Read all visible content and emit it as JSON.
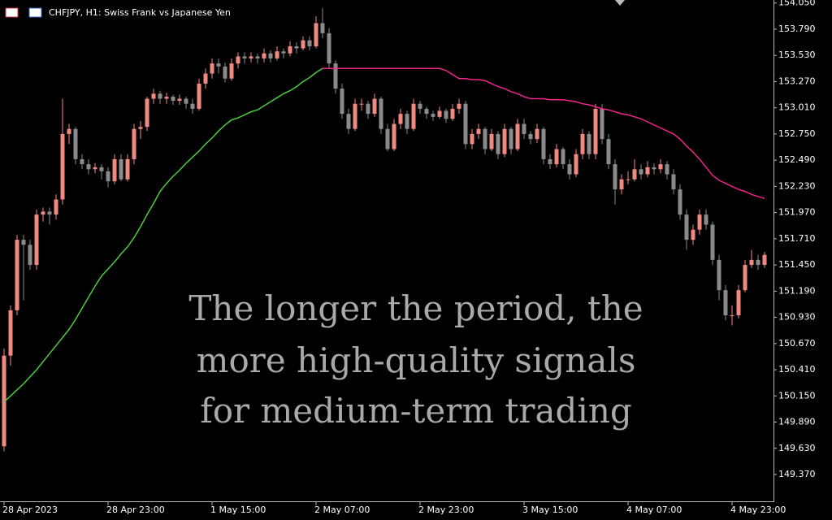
{
  "chart_data": {
    "type": "candlestick",
    "title": "CHFJPY, H1:  Swiss Frank vs Japanese Yen",
    "annotation": [
      "The longer the period, the",
      "more high-quality signals",
      "for medium-term trading"
    ],
    "up_color": "#f08a80",
    "down_color": "#8a8a8a",
    "ylim": [
      149.12,
      154.08
    ],
    "yticks": [
      {
        "value": 154.05,
        "label": "154.050"
      },
      {
        "value": 153.79,
        "label": "153.790"
      },
      {
        "value": 153.53,
        "label": "153.530"
      },
      {
        "value": 153.27,
        "label": "153.270"
      },
      {
        "value": 153.01,
        "label": "153.010"
      },
      {
        "value": 152.75,
        "label": "152.750"
      },
      {
        "value": 152.49,
        "label": "152.490"
      },
      {
        "value": 152.23,
        "label": "152.230"
      },
      {
        "value": 151.97,
        "label": "151.970"
      },
      {
        "value": 151.71,
        "label": "151.710"
      },
      {
        "value": 151.45,
        "label": "151.450"
      },
      {
        "value": 151.19,
        "label": "151.190"
      },
      {
        "value": 150.93,
        "label": "150.930"
      },
      {
        "value": 150.67,
        "label": "150.670"
      },
      {
        "value": 150.41,
        "label": "150.410"
      },
      {
        "value": 150.15,
        "label": "150.150"
      },
      {
        "value": 149.89,
        "label": "149.890"
      },
      {
        "value": 149.63,
        "label": "149.630"
      },
      {
        "value": 149.37,
        "label": "149.370"
      }
    ],
    "xlim": [
      -0.625,
      118.375
    ],
    "xticks": [
      {
        "value": 0,
        "label": "28 Apr 2023"
      },
      {
        "value": 16,
        "label": "28 Apr 23:00"
      },
      {
        "value": 32,
        "label": "1 May 15:00"
      },
      {
        "value": 48,
        "label": "2 May 07:00"
      },
      {
        "value": 64,
        "label": "2 May 23:00"
      },
      {
        "value": 80,
        "label": "3 May 15:00"
      },
      {
        "value": 96,
        "label": "4 May 07:00"
      },
      {
        "value": 112,
        "label": "4 May 23:00"
      }
    ],
    "candles": [
      [
        149.65,
        150.62,
        149.6,
        150.55
      ],
      [
        150.55,
        151.05,
        150.45,
        151.0
      ],
      [
        151.0,
        151.75,
        150.95,
        151.7
      ],
      [
        151.7,
        151.75,
        151.1,
        151.65
      ],
      [
        151.65,
        151.7,
        151.4,
        151.45
      ],
      [
        151.45,
        152.0,
        151.4,
        151.95
      ],
      [
        151.95,
        152.02,
        151.88,
        151.98
      ],
      [
        151.98,
        152.02,
        151.85,
        151.95
      ],
      [
        151.95,
        152.15,
        151.9,
        152.1
      ],
      [
        152.1,
        153.1,
        152.05,
        152.75
      ],
      [
        152.75,
        152.85,
        152.65,
        152.8
      ],
      [
        152.8,
        152.82,
        152.45,
        152.5
      ],
      [
        152.5,
        152.55,
        152.4,
        152.45
      ],
      [
        152.45,
        152.5,
        152.35,
        152.4
      ],
      [
        152.4,
        152.46,
        152.36,
        152.42
      ],
      [
        152.42,
        152.45,
        152.3,
        152.38
      ],
      [
        152.38,
        152.42,
        152.22,
        152.28
      ],
      [
        152.28,
        152.55,
        152.25,
        152.5
      ],
      [
        152.5,
        152.55,
        152.28,
        152.3
      ],
      [
        152.3,
        152.55,
        152.28,
        152.5
      ],
      [
        152.5,
        152.85,
        152.45,
        152.8
      ],
      [
        152.8,
        152.88,
        152.7,
        152.82
      ],
      [
        152.82,
        153.12,
        152.78,
        153.1
      ],
      [
        153.1,
        153.2,
        153.05,
        153.15
      ],
      [
        153.15,
        153.18,
        153.05,
        153.1
      ],
      [
        153.1,
        153.16,
        153.05,
        153.12
      ],
      [
        153.12,
        153.14,
        153.04,
        153.08
      ],
      [
        153.08,
        153.14,
        153.04,
        153.1
      ],
      [
        153.1,
        153.12,
        153.0,
        153.05
      ],
      [
        153.05,
        153.1,
        152.95,
        153.0
      ],
      [
        153.0,
        153.3,
        152.98,
        153.25
      ],
      [
        153.25,
        153.4,
        153.2,
        153.35
      ],
      [
        153.35,
        153.5,
        153.3,
        153.45
      ],
      [
        153.45,
        153.5,
        153.35,
        153.42
      ],
      [
        153.42,
        153.46,
        153.26,
        153.3
      ],
      [
        153.3,
        153.5,
        153.28,
        153.45
      ],
      [
        153.45,
        153.56,
        153.4,
        153.52
      ],
      [
        153.52,
        153.56,
        153.45,
        153.5
      ],
      [
        153.5,
        153.56,
        153.46,
        153.52
      ],
      [
        153.52,
        153.55,
        153.45,
        153.5
      ],
      [
        153.5,
        153.6,
        153.46,
        153.55
      ],
      [
        153.55,
        153.58,
        153.46,
        153.5
      ],
      [
        153.5,
        153.62,
        153.48,
        153.57
      ],
      [
        153.57,
        153.6,
        153.5,
        153.55
      ],
      [
        153.55,
        153.67,
        153.52,
        153.62
      ],
      [
        153.62,
        153.66,
        153.55,
        153.6
      ],
      [
        153.6,
        153.72,
        153.58,
        153.68
      ],
      [
        153.68,
        153.72,
        153.58,
        153.62
      ],
      [
        153.62,
        153.92,
        153.6,
        153.85
      ],
      [
        153.85,
        154.0,
        153.7,
        153.75
      ],
      [
        153.75,
        153.8,
        153.4,
        153.45
      ],
      [
        153.45,
        153.48,
        153.15,
        153.2
      ],
      [
        153.2,
        153.25,
        152.9,
        152.95
      ],
      [
        152.95,
        153.0,
        152.75,
        152.8
      ],
      [
        152.8,
        153.1,
        152.78,
        153.05
      ],
      [
        153.05,
        153.1,
        152.98,
        153.05
      ],
      [
        153.05,
        153.08,
        152.9,
        152.95
      ],
      [
        152.95,
        153.15,
        152.92,
        153.1
      ],
      [
        153.1,
        153.12,
        152.75,
        152.8
      ],
      [
        152.8,
        152.85,
        152.58,
        152.6
      ],
      [
        152.6,
        152.9,
        152.58,
        152.85
      ],
      [
        152.85,
        153.0,
        152.8,
        152.95
      ],
      [
        152.95,
        152.98,
        152.75,
        152.8
      ],
      [
        152.8,
        153.1,
        152.78,
        153.05
      ],
      [
        153.05,
        153.08,
        152.95,
        153.0
      ],
      [
        153.0,
        153.02,
        152.9,
        152.95
      ],
      [
        152.95,
        152.98,
        152.88,
        152.92
      ],
      [
        152.92,
        153.02,
        152.9,
        152.98
      ],
      [
        152.98,
        153.0,
        152.86,
        152.9
      ],
      [
        152.9,
        153.05,
        152.88,
        153.0
      ],
      [
        153.0,
        153.1,
        152.95,
        153.05
      ],
      [
        153.05,
        153.08,
        152.6,
        152.65
      ],
      [
        152.65,
        152.8,
        152.6,
        152.75
      ],
      [
        152.75,
        152.85,
        152.7,
        152.8
      ],
      [
        152.8,
        152.82,
        152.55,
        152.6
      ],
      [
        152.6,
        152.8,
        152.58,
        152.75
      ],
      [
        152.75,
        152.78,
        152.5,
        152.55
      ],
      [
        152.55,
        152.85,
        152.52,
        152.8
      ],
      [
        152.8,
        152.82,
        152.55,
        152.6
      ],
      [
        152.6,
        152.9,
        152.58,
        152.85
      ],
      [
        152.85,
        152.9,
        152.7,
        152.75
      ],
      [
        152.75,
        152.78,
        152.65,
        152.7
      ],
      [
        152.7,
        152.85,
        152.66,
        152.8
      ],
      [
        152.8,
        152.82,
        152.45,
        152.5
      ],
      [
        152.5,
        152.55,
        152.4,
        152.45
      ],
      [
        152.45,
        152.65,
        152.42,
        152.6
      ],
      [
        152.6,
        152.62,
        152.4,
        152.45
      ],
      [
        152.45,
        152.5,
        152.3,
        152.35
      ],
      [
        152.35,
        152.6,
        152.32,
        152.55
      ],
      [
        152.55,
        152.8,
        152.5,
        152.75
      ],
      [
        152.75,
        152.78,
        152.5,
        152.55
      ],
      [
        152.55,
        153.05,
        152.5,
        153.0
      ],
      [
        153.0,
        153.05,
        152.65,
        152.7
      ],
      [
        152.7,
        152.75,
        152.4,
        152.45
      ],
      [
        152.45,
        152.5,
        152.05,
        152.2
      ],
      [
        152.2,
        152.35,
        152.15,
        152.3
      ],
      [
        152.3,
        152.38,
        152.25,
        152.3
      ],
      [
        152.3,
        152.5,
        152.28,
        152.4
      ],
      [
        152.4,
        152.45,
        152.3,
        152.35
      ],
      [
        152.35,
        152.48,
        152.32,
        152.42
      ],
      [
        152.42,
        152.46,
        152.35,
        152.4
      ],
      [
        152.4,
        152.5,
        152.36,
        152.45
      ],
      [
        152.45,
        152.48,
        152.3,
        152.35
      ],
      [
        152.35,
        152.4,
        152.15,
        152.2
      ],
      [
        152.2,
        152.25,
        151.9,
        151.95
      ],
      [
        151.95,
        152.0,
        151.6,
        151.7
      ],
      [
        151.7,
        151.85,
        151.65,
        151.8
      ],
      [
        151.8,
        152.0,
        151.75,
        151.95
      ],
      [
        151.95,
        152.0,
        151.8,
        151.85
      ],
      [
        151.85,
        151.88,
        151.45,
        151.5
      ],
      [
        151.5,
        151.55,
        151.1,
        151.2
      ],
      [
        151.2,
        151.25,
        150.9,
        150.95
      ],
      [
        150.95,
        151.05,
        150.85,
        150.95
      ],
      [
        150.95,
        151.25,
        150.92,
        151.2
      ],
      [
        151.2,
        151.5,
        151.18,
        151.45
      ],
      [
        151.45,
        151.6,
        151.42,
        151.5
      ],
      [
        151.5,
        151.55,
        151.4,
        151.45
      ],
      [
        151.45,
        151.58,
        151.42,
        151.55
      ]
    ],
    "lines": [
      {
        "color": "#4ccc3c",
        "values": [
          150.09,
          150.15,
          150.21,
          150.27,
          150.34,
          150.41,
          150.49,
          150.57,
          150.65,
          150.73,
          150.81,
          150.91,
          151.02,
          151.13,
          151.24,
          151.34,
          151.41,
          151.48,
          151.56,
          151.63,
          151.72,
          151.83,
          151.95,
          152.06,
          152.18,
          152.26,
          152.33,
          152.39,
          152.46,
          152.52,
          152.58,
          152.65,
          152.71,
          152.78,
          152.84,
          152.89,
          152.91,
          152.94,
          152.97,
          152.99,
          153.03,
          153.07,
          153.11,
          153.15,
          153.18,
          153.22,
          153.27,
          153.31,
          153.36,
          153.4,
          null,
          null,
          null,
          null,
          null,
          null,
          null,
          null,
          null,
          null,
          null,
          null,
          null,
          null,
          null,
          null,
          null,
          null,
          null,
          null,
          null,
          null,
          null,
          null,
          null,
          null,
          null,
          null,
          null,
          null,
          null,
          null,
          null,
          null,
          null,
          null,
          null,
          null,
          null,
          null,
          null,
          null,
          null,
          null,
          null,
          null,
          null,
          null,
          null,
          null,
          null,
          null,
          null,
          null,
          null,
          null,
          null,
          null,
          null,
          null,
          null,
          null,
          null,
          null,
          null,
          null,
          null,
          null
        ]
      },
      {
        "color": "#f0248c",
        "values": [
          null,
          null,
          null,
          null,
          null,
          null,
          null,
          null,
          null,
          null,
          null,
          null,
          null,
          null,
          null,
          null,
          null,
          null,
          null,
          null,
          null,
          null,
          null,
          null,
          null,
          null,
          null,
          null,
          null,
          null,
          null,
          null,
          null,
          null,
          null,
          null,
          null,
          null,
          null,
          null,
          null,
          null,
          null,
          null,
          null,
          null,
          null,
          null,
          null,
          153.4,
          153.4,
          153.4,
          153.4,
          153.4,
          153.4,
          153.4,
          153.4,
          153.4,
          153.4,
          153.4,
          153.4,
          153.4,
          153.4,
          153.4,
          153.4,
          153.4,
          153.4,
          153.4,
          153.38,
          153.34,
          153.3,
          153.3,
          153.29,
          153.29,
          153.28,
          153.25,
          153.22,
          153.2,
          153.17,
          153.15,
          153.12,
          153.1,
          153.1,
          153.1,
          153.09,
          153.09,
          153.09,
          153.08,
          153.07,
          153.05,
          153.04,
          153.02,
          153.0,
          152.99,
          152.97,
          152.95,
          152.94,
          152.92,
          152.9,
          152.87,
          152.84,
          152.81,
          152.78,
          152.75,
          152.7,
          152.63,
          152.57,
          152.5,
          152.42,
          152.34,
          152.29,
          152.26,
          152.23,
          152.2,
          152.18,
          152.15,
          152.13,
          152.11
        ]
      }
    ]
  }
}
